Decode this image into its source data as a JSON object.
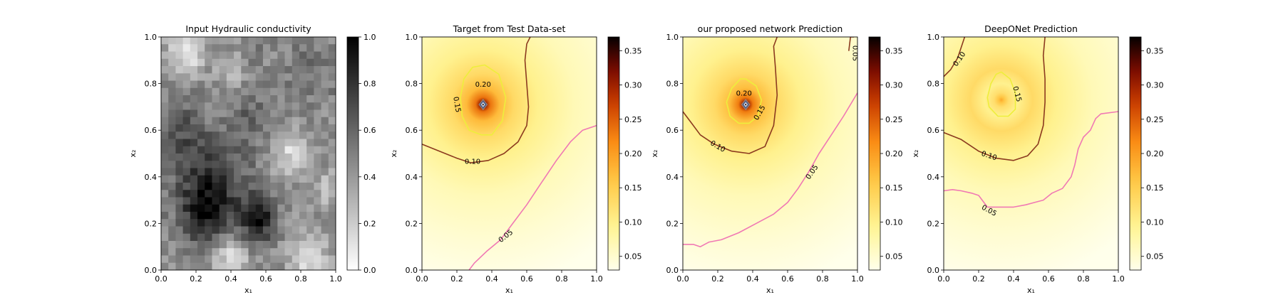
{
  "chart_data": [
    {
      "type": "heatmap",
      "title": "Input Hydraulic conductivity",
      "xlabel": "x₁",
      "ylabel": "x₂",
      "xlim": [
        0,
        1
      ],
      "ylim": [
        0,
        1
      ],
      "x_ticks": [
        "0.0",
        "0.2",
        "0.4",
        "0.6",
        "0.8",
        "1.0"
      ],
      "y_ticks": [
        "0.0",
        "0.2",
        "0.4",
        "0.6",
        "0.8",
        "1.0"
      ],
      "colormap": "gray_r",
      "colorbar": {
        "range": [
          0,
          1
        ],
        "ticks": [
          "0.0",
          "0.2",
          "0.4",
          "0.6",
          "0.8",
          "1.0"
        ],
        "tick_values": [
          0,
          0.2,
          0.4,
          0.6,
          0.8,
          1.0
        ]
      },
      "field": {
        "grid": [
          24,
          32
        ],
        "dark_regions": [
          {
            "x": 0.28,
            "y": 0.37,
            "radius": 0.2,
            "value": 0.82
          },
          {
            "x": 0.55,
            "y": 0.22,
            "radius": 0.1,
            "value": 0.95
          },
          {
            "x": 0.1,
            "y": 0.6,
            "radius": 0.12,
            "value": 0.65
          },
          {
            "x": 0.5,
            "y": 0.65,
            "radius": 0.12,
            "value": 0.6
          },
          {
            "x": 0.25,
            "y": 0.23,
            "radius": 0.12,
            "value": 0.75
          },
          {
            "x": 0.85,
            "y": 0.12,
            "radius": 0.1,
            "value": 0.5
          },
          {
            "x": 0.85,
            "y": 0.85,
            "radius": 0.15,
            "value": 0.55
          },
          {
            "x": 0.55,
            "y": 0.95,
            "radius": 0.08,
            "value": 0.5
          }
        ],
        "light_regions": [
          {
            "x": 0.75,
            "y": 0.5,
            "radius": 0.1,
            "value": 0.15
          },
          {
            "x": 0.15,
            "y": 0.95,
            "radius": 0.1,
            "value": 0.05
          },
          {
            "x": 0.85,
            "y": 0.05,
            "radius": 0.12,
            "value": 0.15
          },
          {
            "x": 0.4,
            "y": 0.05,
            "radius": 0.1,
            "value": 0.12
          },
          {
            "x": 0.4,
            "y": 0.85,
            "radius": 0.08,
            "value": 0.25
          },
          {
            "x": 0.95,
            "y": 0.35,
            "radius": 0.08,
            "value": 0.25
          }
        ]
      }
    },
    {
      "type": "heatmap",
      "title": "Target from Test Data-set",
      "xlabel": "x₁",
      "ylabel": "x₂",
      "xlim": [
        0,
        1
      ],
      "ylim": [
        0,
        1
      ],
      "x_ticks": [
        "0.0",
        "0.2",
        "0.4",
        "0.6",
        "0.8",
        "1.0"
      ],
      "y_ticks": [
        "0.0",
        "0.2",
        "0.4",
        "0.6",
        "0.8",
        "1.0"
      ],
      "colormap": "afmhot_r",
      "colorbar": {
        "range": [
          0.03,
          0.37
        ],
        "ticks": [
          "0.05",
          "0.10",
          "0.15",
          "0.20",
          "0.25",
          "0.30",
          "0.35"
        ],
        "tick_values": [
          0.05,
          0.1,
          0.15,
          0.2,
          0.25,
          0.3,
          0.35
        ]
      },
      "source": {
        "x": 0.35,
        "y": 0.71,
        "peak": 0.37
      },
      "contours": [
        {
          "level": "0.20",
          "color": "#eeee3c",
          "x": [
            0.36,
            0.44,
            0.48,
            0.46,
            0.4,
            0.34,
            0.27,
            0.23,
            0.22,
            0.24,
            0.29,
            0.36
          ],
          "y": [
            0.88,
            0.84,
            0.74,
            0.64,
            0.58,
            0.58,
            0.6,
            0.66,
            0.74,
            0.82,
            0.87,
            0.88
          ]
        },
        {
          "level": "0.15",
          "color": "#eeee3c",
          "x": [],
          "y": []
        },
        {
          "level": "0.10",
          "color": "#8b3a1f",
          "x": [
            0.0,
            0.1,
            0.2,
            0.28,
            0.38,
            0.47,
            0.55,
            0.6,
            0.61,
            0.6,
            0.59,
            0.6,
            0.62
          ],
          "y": [
            0.54,
            0.51,
            0.48,
            0.46,
            0.47,
            0.5,
            0.55,
            0.62,
            0.7,
            0.8,
            0.9,
            0.97,
            1.0
          ]
        },
        {
          "level": "0.05",
          "color": "#f078b4",
          "x": [
            0.27,
            0.3,
            0.37,
            0.45,
            0.52,
            0.6,
            0.68,
            0.77,
            0.85,
            0.92,
            1.0
          ],
          "y": [
            0.0,
            0.03,
            0.08,
            0.13,
            0.2,
            0.28,
            0.37,
            0.47,
            0.55,
            0.6,
            0.62
          ]
        }
      ],
      "contour_labels": [
        {
          "text": "0.20",
          "x": 0.35,
          "y": 0.795
        },
        {
          "text": "0.15",
          "x": 0.2,
          "y": 0.71,
          "rotate": 80
        },
        {
          "text": "0.10",
          "x": 0.29,
          "y": 0.465
        },
        {
          "text": "0.05",
          "x": 0.48,
          "y": 0.145,
          "rotate": -38
        }
      ]
    },
    {
      "type": "heatmap",
      "title": "our proposed network Prediction",
      "xlabel": "x₁",
      "ylabel": "x₂",
      "xlim": [
        0,
        1
      ],
      "ylim": [
        0,
        1
      ],
      "x_ticks": [
        "0.0",
        "0.2",
        "0.4",
        "0.6",
        "0.8",
        "1.0"
      ],
      "y_ticks": [
        "0.0",
        "0.2",
        "0.4",
        "0.6",
        "0.8",
        "1.0"
      ],
      "colormap": "afmhot_r",
      "colorbar": {
        "range": [
          0.03,
          0.37
        ],
        "ticks": [
          "0.05",
          "0.10",
          "0.15",
          "0.20",
          "0.25",
          "0.30",
          "0.35"
        ],
        "tick_values": [
          0.05,
          0.1,
          0.15,
          0.2,
          0.25,
          0.3,
          0.35
        ]
      },
      "source": {
        "x": 0.36,
        "y": 0.71,
        "peak": 0.36
      },
      "contours": [
        {
          "level": "0.20",
          "color": "#eeee3c",
          "x": [
            0.36,
            0.42,
            0.45,
            0.43,
            0.38,
            0.32,
            0.27,
            0.25,
            0.28,
            0.33,
            0.36
          ],
          "y": [
            0.82,
            0.79,
            0.73,
            0.66,
            0.63,
            0.63,
            0.66,
            0.72,
            0.78,
            0.82,
            0.82
          ]
        },
        {
          "level": "0.15",
          "color": "#eeee3c",
          "x": [],
          "y": []
        },
        {
          "level": "0.10",
          "color": "#8b3a1f",
          "x": [
            0.0,
            0.05,
            0.1,
            0.18,
            0.28,
            0.38,
            0.47,
            0.52,
            0.54,
            0.53,
            0.52,
            0.54
          ],
          "y": [
            0.68,
            0.63,
            0.58,
            0.54,
            0.51,
            0.5,
            0.53,
            0.62,
            0.75,
            0.87,
            0.96,
            1.0
          ]
        },
        {
          "level": "0.05",
          "color": "#f078b4",
          "x": [
            0.0,
            0.06,
            0.1,
            0.15,
            0.22,
            0.32,
            0.42,
            0.52,
            0.6,
            0.66,
            0.72,
            0.78,
            0.85,
            0.92,
            1.0
          ],
          "y": [
            0.11,
            0.11,
            0.1,
            0.12,
            0.13,
            0.16,
            0.2,
            0.24,
            0.29,
            0.35,
            0.42,
            0.5,
            0.58,
            0.66,
            0.76
          ]
        },
        {
          "level": "0.05",
          "color": "#8b3a1f",
          "x": [
            0.95,
            0.96,
            0.98
          ],
          "y": [
            0.94,
            1.0,
            1.0
          ]
        }
      ],
      "contour_labels": [
        {
          "text": "0.20",
          "x": 0.35,
          "y": 0.758
        },
        {
          "text": "0.15",
          "x": 0.44,
          "y": 0.675,
          "rotate": -60
        },
        {
          "text": "0.10",
          "x": 0.2,
          "y": 0.53,
          "rotate": 30
        },
        {
          "text": "0.05",
          "x": 0.74,
          "y": 0.42,
          "rotate": -55
        },
        {
          "text": "0.05",
          "x": 0.985,
          "y": 0.93,
          "rotate": 90
        }
      ]
    },
    {
      "type": "heatmap",
      "title": "DeepONet Prediction",
      "xlabel": "x₁",
      "ylabel": "x₂",
      "xlim": [
        0,
        1
      ],
      "ylim": [
        0,
        1
      ],
      "x_ticks": [
        "0.0",
        "0.2",
        "0.4",
        "0.6",
        "0.8",
        "1.0"
      ],
      "y_ticks": [
        "0.0",
        "0.2",
        "0.4",
        "0.6",
        "0.8",
        "1.0"
      ],
      "colormap": "afmhot_r",
      "colorbar": {
        "range": [
          0.03,
          0.37
        ],
        "ticks": [
          "0.05",
          "0.10",
          "0.15",
          "0.20",
          "0.25",
          "0.30",
          "0.35"
        ],
        "tick_values": [
          0.05,
          0.1,
          0.15,
          0.2,
          0.25,
          0.3,
          0.35
        ]
      },
      "source": {
        "x": 0.33,
        "y": 0.73,
        "peak": 0.19
      },
      "contours": [
        {
          "level": "0.15",
          "color": "#eeee3c",
          "x": [
            0.33,
            0.38,
            0.41,
            0.41,
            0.37,
            0.31,
            0.26,
            0.25,
            0.27,
            0.3,
            0.33
          ],
          "y": [
            0.85,
            0.82,
            0.76,
            0.69,
            0.66,
            0.66,
            0.7,
            0.74,
            0.8,
            0.84,
            0.85
          ]
        },
        {
          "level": "0.10",
          "color": "#8b3a1f",
          "x": [
            0.0,
            0.04,
            0.08,
            0.12
          ],
          "y": [
            0.83,
            0.86,
            0.91,
            1.0
          ]
        },
        {
          "level": "0.10",
          "color": "#8b3a1f",
          "x": [
            0.0,
            0.1,
            0.2,
            0.3,
            0.4,
            0.48,
            0.54,
            0.57,
            0.58,
            0.58,
            0.57,
            0.58
          ],
          "y": [
            0.59,
            0.56,
            0.51,
            0.48,
            0.47,
            0.49,
            0.54,
            0.62,
            0.72,
            0.82,
            0.92,
            1.0
          ]
        },
        {
          "level": "0.05",
          "color": "#f078b4",
          "x": [
            0.0,
            0.05,
            0.1,
            0.16,
            0.2,
            0.25,
            0.3,
            0.4,
            0.47,
            0.52,
            0.57,
            0.62,
            0.68,
            0.73,
            0.75,
            0.77,
            0.8,
            0.84,
            0.87,
            0.9,
            1.0
          ],
          "y": [
            0.34,
            0.345,
            0.34,
            0.33,
            0.32,
            0.27,
            0.27,
            0.27,
            0.28,
            0.29,
            0.3,
            0.33,
            0.35,
            0.4,
            0.45,
            0.52,
            0.57,
            0.6,
            0.65,
            0.67,
            0.68
          ]
        }
      ],
      "contour_labels": [
        {
          "text": "0.10",
          "x": 0.09,
          "y": 0.905,
          "rotate": -55
        },
        {
          "text": "0.15",
          "x": 0.42,
          "y": 0.755,
          "rotate": 75
        },
        {
          "text": "0.10",
          "x": 0.26,
          "y": 0.49,
          "rotate": 18
        },
        {
          "text": "0.05",
          "x": 0.26,
          "y": 0.255,
          "rotate": 28
        }
      ]
    }
  ]
}
